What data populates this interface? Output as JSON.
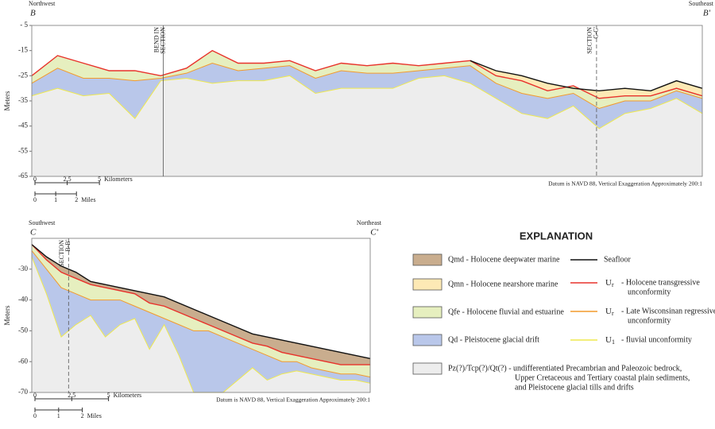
{
  "chart_data": [
    {
      "type": "line",
      "axis_label": "Meters",
      "left_direction": "Northwest",
      "left_end": "B",
      "right_direction": "Southeast",
      "right_end": "B'",
      "note": "Datum is NAVD 88, Vertical Exaggeration Approximately 200:1",
      "xlim": [
        0,
        52
      ],
      "ylim": [
        -5,
        -65
      ],
      "yticks": [
        {
          "value": -5,
          "label": "- 5"
        },
        -15,
        -25,
        -35,
        -45,
        -55,
        -65
      ],
      "x": [
        0,
        2,
        4,
        6,
        8,
        10,
        12,
        14,
        16,
        18,
        20,
        22,
        24,
        26,
        28,
        30,
        32,
        34,
        36,
        38,
        40,
        42,
        44,
        46,
        48,
        50,
        52
      ],
      "series": [
        {
          "color": "#111111",
          "fill": "#fde9b5",
          "values": [
            null,
            null,
            null,
            null,
            null,
            null,
            null,
            null,
            null,
            null,
            null,
            null,
            null,
            null,
            null,
            null,
            null,
            -19,
            -23,
            -25,
            -28,
            -30,
            -31,
            -30,
            -31,
            -27,
            -30
          ]
        },
        {
          "color": "#e8322b",
          "fill": "#e6efbf",
          "values": [
            -25,
            -17,
            -20,
            -23,
            -23,
            -25,
            -22,
            -15,
            -20,
            -20,
            -19,
            -23,
            -20,
            -21,
            -20,
            -21,
            -20,
            -19,
            -25,
            -27,
            -31,
            -29,
            -34,
            -33,
            -33,
            -30,
            -33
          ]
        },
        {
          "color": "#f39a2c",
          "fill": "#b9c7ea",
          "values": [
            -28,
            -22,
            -26,
            -26,
            -27,
            -26,
            -24,
            -20,
            -23,
            -22,
            -21,
            -26,
            -23,
            -24,
            -24,
            -23,
            -22,
            -21,
            -28,
            -32,
            -34,
            -32,
            -38,
            -35,
            -35,
            -31,
            -34
          ]
        },
        {
          "color": "#efe94f",
          "fill": "#ededed",
          "values": [
            -33,
            -30,
            -33,
            -32,
            -42,
            -27,
            -26,
            -28,
            -27,
            -27,
            -25,
            -32,
            -30,
            -30,
            -30,
            -26,
            -25,
            -28,
            -34,
            -40,
            -42,
            -37,
            -46,
            -40,
            -38,
            -34,
            -40
          ]
        }
      ],
      "markers": [
        {
          "x": 10.2,
          "lines": [
            "BEND IN",
            "SECTION"
          ],
          "style": "solid"
        },
        {
          "x": 43.8,
          "lines": [
            "SECTION",
            "C-C'"
          ],
          "style": "dashed"
        }
      ],
      "scale": {
        "km": [
          0,
          2.5,
          5
        ],
        "km_label": "Kilometers",
        "mi": [
          0,
          1,
          2
        ],
        "mi_label": "Miles"
      }
    },
    {
      "type": "line",
      "axis_label": "Meters",
      "left_direction": "Southwest",
      "left_end": "C",
      "right_direction": "Northeast",
      "right_end": "C'",
      "note": "Datum is NAVD 88, Vertical Exaggeration Approximately 200:1",
      "xlim": [
        0,
        23
      ],
      "ylim": [
        -20,
        -70
      ],
      "yticks": [
        -30,
        -40,
        -50,
        -60,
        -70
      ],
      "x": [
        0,
        1,
        2,
        3,
        4,
        5,
        6,
        7,
        8,
        9,
        10,
        11,
        12,
        13,
        14,
        15,
        16,
        17,
        18,
        19,
        20,
        21,
        22,
        23
      ],
      "series": [
        {
          "color": "#111111",
          "fill": "#c9ad8e",
          "values": [
            -22,
            -26,
            -29,
            -31,
            -34,
            -35,
            -36,
            -37,
            -38,
            -39,
            -41,
            -43,
            -45,
            -47,
            -49,
            -51,
            -52,
            -53,
            -54,
            -55,
            -56,
            -57,
            -58,
            -59
          ]
        },
        {
          "color": "#e8322b",
          "fill": "#e6efbf",
          "values": [
            -22,
            -27,
            -31,
            -33,
            -35,
            -36,
            -37,
            -38,
            -41,
            -42,
            -44,
            -46,
            -48,
            -50,
            -52,
            -54,
            -55,
            -57,
            -58,
            -59,
            -60,
            -61,
            -61,
            -61
          ]
        },
        {
          "color": "#f39a2c",
          "fill": "#b9c7ea",
          "values": [
            -24,
            -30,
            -36,
            -38,
            -40,
            -40,
            -40,
            -42,
            -44,
            -46,
            -48,
            -50,
            -50,
            -52,
            -54,
            -56,
            -58,
            -60,
            -60,
            -62,
            -63,
            -64,
            -64,
            -65
          ]
        },
        {
          "color": "#efe94f",
          "fill": "#ededed",
          "values": [
            -26,
            -38,
            -52,
            -48,
            -45,
            -52,
            -48,
            -46,
            -56,
            -48,
            -58,
            -70,
            -70,
            -70,
            -66,
            -62,
            -66,
            -64,
            -63,
            -64,
            -65,
            -66,
            -66,
            -67
          ]
        }
      ],
      "markers": [
        {
          "x": 2.5,
          "lines": [
            "SECTION",
            "B-B'"
          ],
          "style": "dashed"
        }
      ],
      "scale": {
        "km": [
          0,
          2.5,
          5
        ],
        "km_label": "Kilometers",
        "mi": [
          0,
          1,
          2
        ],
        "mi_label": "Miles"
      }
    }
  ],
  "explanation": {
    "title": "EXPLANATION",
    "units": [
      {
        "color": "#c9ad8e",
        "label": [
          "Qmd - Holocene deepwater marine"
        ]
      },
      {
        "color": "#fde9b5",
        "label": [
          "Qmn - Holocene nearshore marine"
        ]
      },
      {
        "color": "#e6efbf",
        "label": [
          "Qfe - Holocene fluvial and estuarine"
        ]
      },
      {
        "color": "#b9c7ea",
        "label": [
          "Qd - Pleistocene glacial drift"
        ]
      },
      {
        "color": "#ededed",
        "label": [
          "Pz(?)/Tcp(?)/Qt(?) -  undifferentiated Precambrian and Paleozoic bedrock,",
          "Upper Cretaceous and Tertiary coastal plain sediments,",
          "and Pleistocene glacial tills and drifts"
        ]
      }
    ],
    "lines": [
      {
        "color": "#111111",
        "label": [
          "Seafloor"
        ]
      },
      {
        "color": "#e8322b",
        "symbol": "U",
        "sub": "r",
        "label": [
          "- Holocene transgressive",
          "unconformity"
        ]
      },
      {
        "color": "#f39a2c",
        "symbol": "U",
        "sub": "r",
        "label": [
          "- Late Wisconsinan regressive",
          "unconformity"
        ]
      },
      {
        "color": "#efe94f",
        "symbol": "U",
        "sub": "1",
        "label": [
          "- fluvial unconformity"
        ]
      }
    ]
  }
}
